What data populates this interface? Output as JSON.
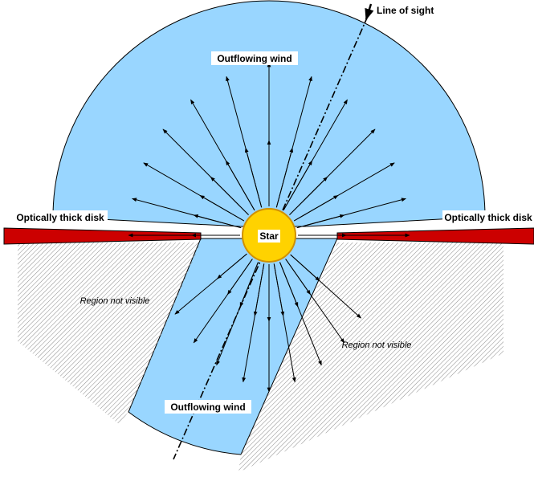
{
  "labels": {
    "line_of_sight": "Line of sight",
    "wind_top": "Outflowing wind",
    "wind_bottom": "Outflowing wind",
    "disk_left": "Optically thick disk",
    "disk_right": "Optically thick disk",
    "star": "Star",
    "region_left": "Region not visible",
    "region_right": "Region not visible"
  },
  "colors": {
    "wind": "#99d6ff",
    "disk": "#cc0000",
    "star_fill": "#ffd200",
    "star_stroke": "#d09000",
    "hatch": "#8a8a8a",
    "arrow": "#000000"
  },
  "arrows": {
    "upper_angles_deg": [
      0,
      15,
      30,
      45,
      60,
      75,
      90,
      105,
      120,
      135,
      150,
      165,
      180
    ],
    "lower_angles_deg": [
      -140,
      -125,
      -112,
      -100,
      -90,
      -80,
      -68,
      -55,
      -42
    ]
  }
}
